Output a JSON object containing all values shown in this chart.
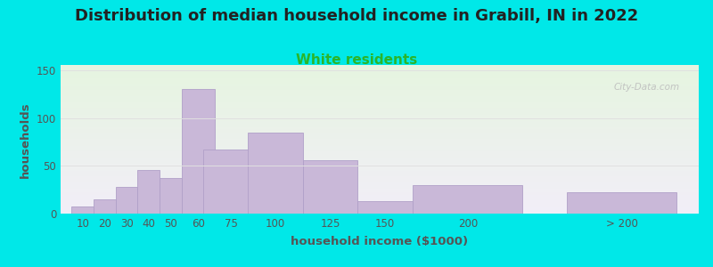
{
  "title": "Distribution of median household income in Grabill, IN in 2022",
  "subtitle": "White residents",
  "xlabel": "household income ($1000)",
  "ylabel": "households",
  "bar_labels": [
    "10",
    "20",
    "30",
    "40",
    "50",
    "60",
    "75",
    "100",
    "125",
    "150",
    "200",
    "> 200"
  ],
  "bar_heights": [
    7,
    15,
    28,
    46,
    37,
    130,
    67,
    85,
    56,
    13,
    30,
    22
  ],
  "bar_widths": [
    10,
    10,
    10,
    10,
    10,
    15,
    25,
    25,
    25,
    25,
    50,
    50
  ],
  "bar_lefts": [
    5,
    15,
    25,
    35,
    45,
    55,
    65,
    85,
    110,
    135,
    160,
    230
  ],
  "bar_color": "#c9b8d8",
  "bar_edge_color": "#b0a0c8",
  "yticks": [
    0,
    50,
    100,
    150
  ],
  "ylim": [
    0,
    155
  ],
  "xlim": [
    0,
    290
  ],
  "background_color": "#00e8e8",
  "plot_bg_top": "#e6f5e0",
  "plot_bg_bottom": "#f2eef8",
  "title_fontsize": 13,
  "title_color": "#222222",
  "subtitle_fontsize": 11,
  "subtitle_color": "#2ab52a",
  "axis_label_fontsize": 9.5,
  "axis_label_color": "#555555",
  "tick_label_fontsize": 8.5,
  "tick_color": "#555555",
  "watermark_text": "City-Data.com",
  "watermark_color": "#bbbbbb",
  "grid_color": "#e0e0e0"
}
